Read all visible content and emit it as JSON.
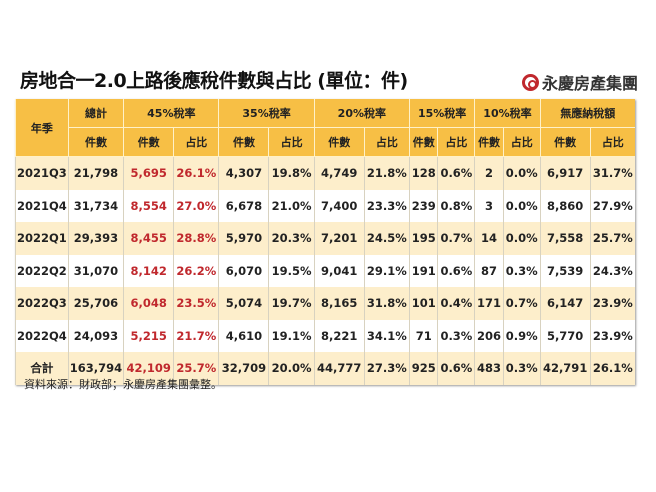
{
  "title": "房地合一2.0上路後應稅件數與占比 (單位：件)",
  "logo": "永慶房產集團",
  "header": {
    "year": "年季",
    "total": "總計",
    "groups": [
      "45%稅率",
      "35%稅率",
      "20%稅率",
      "15%稅率",
      "10%稅率",
      "無應納稅額"
    ],
    "count": "件數",
    "share": "占比"
  },
  "rows": [
    [
      "2021Q3",
      "21,798",
      "5,695",
      "26.1%",
      "4,307",
      "19.8%",
      "4,749",
      "21.8%",
      "128",
      "0.6%",
      "2",
      "0.0%",
      "6,917",
      "31.7%"
    ],
    [
      "2021Q4",
      "31,734",
      "8,554",
      "27.0%",
      "6,678",
      "21.0%",
      "7,400",
      "23.3%",
      "239",
      "0.8%",
      "3",
      "0.0%",
      "8,860",
      "27.9%"
    ],
    [
      "2022Q1",
      "29,393",
      "8,455",
      "28.8%",
      "5,970",
      "20.3%",
      "7,201",
      "24.5%",
      "195",
      "0.7%",
      "14",
      "0.0%",
      "7,558",
      "25.7%"
    ],
    [
      "2022Q2",
      "31,070",
      "8,142",
      "26.2%",
      "6,070",
      "19.5%",
      "9,041",
      "29.1%",
      "191",
      "0.6%",
      "87",
      "0.3%",
      "7,539",
      "24.3%"
    ],
    [
      "2022Q3",
      "25,706",
      "6,048",
      "23.5%",
      "5,074",
      "19.7%",
      "8,165",
      "31.8%",
      "101",
      "0.4%",
      "171",
      "0.7%",
      "6,147",
      "23.9%"
    ],
    [
      "2022Q4",
      "24,093",
      "5,215",
      "21.7%",
      "4,610",
      "19.1%",
      "8,221",
      "34.1%",
      "71",
      "0.3%",
      "206",
      "0.9%",
      "5,770",
      "23.9%"
    ],
    [
      "合計",
      "163,794",
      "42,109",
      "25.7%",
      "32,709",
      "20.0%",
      "44,777",
      "27.3%",
      "925",
      "0.6%",
      "483",
      "0.3%",
      "42,791",
      "26.1%"
    ]
  ],
  "source": "資料來源：財政部；永慶房產集團彙整。",
  "colors": {
    "header": "#f7bf45",
    "stripe": "#fdeecb",
    "highlight": "#c0282d"
  }
}
